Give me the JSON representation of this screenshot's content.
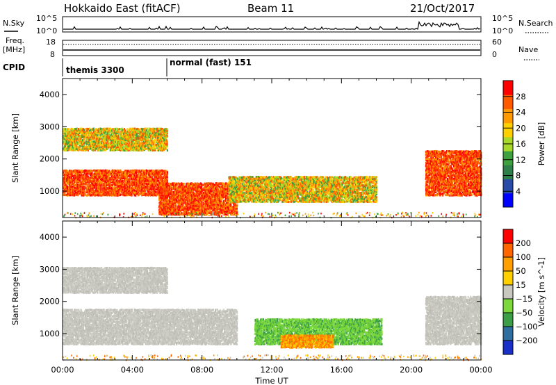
{
  "header": {
    "title": "Hokkaido East (fitACF)",
    "beam": "Beam 11",
    "date": "21/Oct/2017"
  },
  "strips": {
    "nsky_label": "N.Sky",
    "nsky_ticks": [
      "10^5",
      "10^0"
    ],
    "nsearch_label": "N.Search",
    "freq_label_line1": "Freq.",
    "freq_label_line2": "[MHz]",
    "freq_ticks": [
      "18",
      "8"
    ],
    "nave_ticks": [
      "60",
      "0"
    ],
    "nave_label": "Nave",
    "cpid_label": "CPID",
    "cpid_segments": [
      "themis 3300",
      "normal (fast) 151"
    ]
  },
  "chart_data": [
    {
      "type": "heatmap",
      "name": "power",
      "xlabel": "",
      "ylabel": "Slant Range [km]",
      "x_ticks": [
        "00:00",
        "04:00",
        "08:00",
        "12:00",
        "16:00",
        "20:00",
        "00:00"
      ],
      "y_ticks": [
        1000,
        2000,
        3000,
        4000
      ],
      "xlim": [
        0,
        24
      ],
      "ylim": [
        180,
        4500
      ],
      "colorbar": {
        "label": "Power [dB]",
        "ticks": [
          4,
          8,
          12,
          16,
          20,
          24,
          28
        ],
        "range": [
          0,
          32
        ],
        "colors": [
          "#0000ff",
          "#2a4aa8",
          "#2e7f4a",
          "#3fa03f",
          "#a8d82a",
          "#ffd000",
          "#ff9a00",
          "#ff5a00",
          "#ff0000"
        ]
      },
      "regions": [
        {
          "t0": 0.0,
          "t1": 6.0,
          "r0": 900,
          "r1": 1700,
          "level": "high"
        },
        {
          "t0": 5.5,
          "t1": 10.0,
          "r0": 300,
          "r1": 1300,
          "level": "high"
        },
        {
          "t0": 9.5,
          "t1": 18.0,
          "r0": 700,
          "r1": 1500,
          "level": "medium"
        },
        {
          "t0": 0.0,
          "t1": 6.0,
          "r0": 2300,
          "r1": 3000,
          "level": "medium"
        },
        {
          "t0": 20.8,
          "t1": 24.0,
          "r0": 900,
          "r1": 2300,
          "level": "high"
        }
      ]
    },
    {
      "type": "heatmap",
      "name": "velocity",
      "xlabel": "Time UT",
      "ylabel": "Slant Range [km]",
      "x_ticks": [
        "00:00",
        "04:00",
        "08:00",
        "12:00",
        "16:00",
        "20:00",
        "00:00"
      ],
      "y_ticks": [
        1000,
        2000,
        3000,
        4000
      ],
      "xlim": [
        0,
        24
      ],
      "ylim": [
        180,
        4500
      ],
      "colorbar": {
        "label": "Velocity [m s^-1]",
        "ticks": [
          200,
          100,
          50,
          15,
          -15,
          -50,
          -100,
          -200
        ],
        "colors": [
          "#1a2fc8",
          "#2f6f9f",
          "#3d9e4a",
          "#7cd83c",
          "#c8c8c0",
          "#ffd000",
          "#ffa000",
          "#ff6600",
          "#ff0000"
        ]
      },
      "regions": [
        {
          "t0": 0.0,
          "t1": 10.0,
          "r0": 700,
          "r1": 1800,
          "level": "gray"
        },
        {
          "t0": 0.0,
          "t1": 6.0,
          "r0": 2300,
          "r1": 3100,
          "level": "gray"
        },
        {
          "t0": 11.0,
          "t1": 18.3,
          "r0": 700,
          "r1": 1500,
          "level": "green"
        },
        {
          "t0": 12.5,
          "t1": 15.5,
          "r0": 600,
          "r1": 1000,
          "level": "orange"
        },
        {
          "t0": 20.8,
          "t1": 24.0,
          "r0": 700,
          "r1": 2200,
          "level": "gray"
        }
      ]
    }
  ]
}
